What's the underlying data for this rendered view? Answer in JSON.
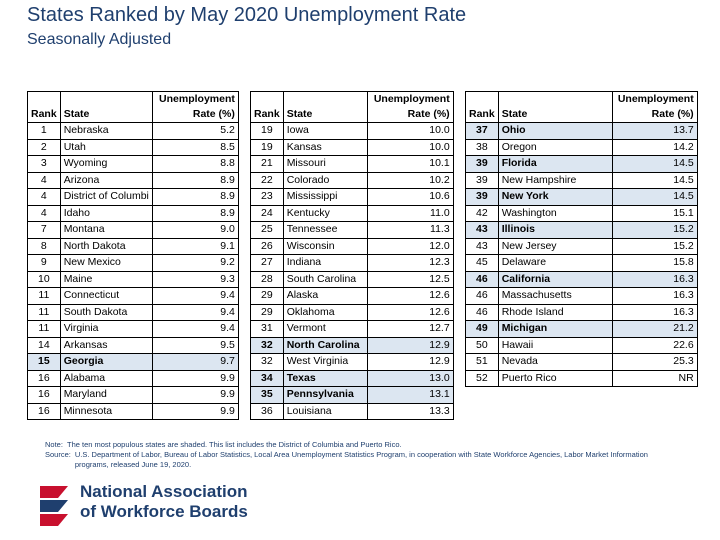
{
  "title": "States Ranked by May 2020 Unemployment Rate",
  "subtitle": "Seasonally Adjusted",
  "headers": {
    "rank": "Rank",
    "state": "State",
    "rate_line1": "Unemployment",
    "rate_line2": "Rate (%)"
  },
  "tables": [
    {
      "rows": [
        {
          "rank": "1",
          "state": "Nebraska",
          "rate": "5.2",
          "shaded": false
        },
        {
          "rank": "2",
          "state": "Utah",
          "rate": "8.5",
          "shaded": false
        },
        {
          "rank": "3",
          "state": "Wyoming",
          "rate": "8.8",
          "shaded": false
        },
        {
          "rank": "4",
          "state": "Arizona",
          "rate": "8.9",
          "shaded": false
        },
        {
          "rank": "4",
          "state": "District of Columbi",
          "rate": "8.9",
          "shaded": false
        },
        {
          "rank": "4",
          "state": "Idaho",
          "rate": "8.9",
          "shaded": false
        },
        {
          "rank": "7",
          "state": "Montana",
          "rate": "9.0",
          "shaded": false
        },
        {
          "rank": "8",
          "state": "North Dakota",
          "rate": "9.1",
          "shaded": false
        },
        {
          "rank": "9",
          "state": "New Mexico",
          "rate": "9.2",
          "shaded": false
        },
        {
          "rank": "10",
          "state": "Maine",
          "rate": "9.3",
          "shaded": false
        },
        {
          "rank": "11",
          "state": "Connecticut",
          "rate": "9.4",
          "shaded": false
        },
        {
          "rank": "11",
          "state": "South Dakota",
          "rate": "9.4",
          "shaded": false
        },
        {
          "rank": "11",
          "state": "Virginia",
          "rate": "9.4",
          "shaded": false
        },
        {
          "rank": "14",
          "state": "Arkansas",
          "rate": "9.5",
          "shaded": false
        },
        {
          "rank": "15",
          "state": "Georgia",
          "rate": "9.7",
          "shaded": true
        },
        {
          "rank": "16",
          "state": "Alabama",
          "rate": "9.9",
          "shaded": false
        },
        {
          "rank": "16",
          "state": "Maryland",
          "rate": "9.9",
          "shaded": false
        },
        {
          "rank": "16",
          "state": "Minnesota",
          "rate": "9.9",
          "shaded": false
        }
      ]
    },
    {
      "rows": [
        {
          "rank": "19",
          "state": "Iowa",
          "rate": "10.0",
          "shaded": false
        },
        {
          "rank": "19",
          "state": "Kansas",
          "rate": "10.0",
          "shaded": false
        },
        {
          "rank": "21",
          "state": "Missouri",
          "rate": "10.1",
          "shaded": false
        },
        {
          "rank": "22",
          "state": "Colorado",
          "rate": "10.2",
          "shaded": false
        },
        {
          "rank": "23",
          "state": "Mississippi",
          "rate": "10.6",
          "shaded": false
        },
        {
          "rank": "24",
          "state": "Kentucky",
          "rate": "11.0",
          "shaded": false
        },
        {
          "rank": "25",
          "state": "Tennessee",
          "rate": "11.3",
          "shaded": false
        },
        {
          "rank": "26",
          "state": "Wisconsin",
          "rate": "12.0",
          "shaded": false
        },
        {
          "rank": "27",
          "state": "Indiana",
          "rate": "12.3",
          "shaded": false
        },
        {
          "rank": "28",
          "state": "South Carolina",
          "rate": "12.5",
          "shaded": false
        },
        {
          "rank": "29",
          "state": "Alaska",
          "rate": "12.6",
          "shaded": false
        },
        {
          "rank": "29",
          "state": "Oklahoma",
          "rate": "12.6",
          "shaded": false
        },
        {
          "rank": "31",
          "state": "Vermont",
          "rate": "12.7",
          "shaded": false
        },
        {
          "rank": "32",
          "state": "North Carolina",
          "rate": "12.9",
          "shaded": true
        },
        {
          "rank": "32",
          "state": "West Virginia",
          "rate": "12.9",
          "shaded": false
        },
        {
          "rank": "34",
          "state": "Texas",
          "rate": "13.0",
          "shaded": true
        },
        {
          "rank": "35",
          "state": "Pennsylvania",
          "rate": "13.1",
          "shaded": true
        },
        {
          "rank": "36",
          "state": "Louisiana",
          "rate": "13.3",
          "shaded": false
        }
      ]
    },
    {
      "rows": [
        {
          "rank": "37",
          "state": "Ohio",
          "rate": "13.7",
          "shaded": true
        },
        {
          "rank": "38",
          "state": "Oregon",
          "rate": "14.2",
          "shaded": false
        },
        {
          "rank": "39",
          "state": "Florida",
          "rate": "14.5",
          "shaded": true
        },
        {
          "rank": "39",
          "state": "New Hampshire",
          "rate": "14.5",
          "shaded": false
        },
        {
          "rank": "39",
          "state": "New York",
          "rate": "14.5",
          "shaded": true
        },
        {
          "rank": "42",
          "state": "Washington",
          "rate": "15.1",
          "shaded": false
        },
        {
          "rank": "43",
          "state": "Illinois",
          "rate": "15.2",
          "shaded": true
        },
        {
          "rank": "43",
          "state": "New Jersey",
          "rate": "15.2",
          "shaded": false
        },
        {
          "rank": "45",
          "state": "Delaware",
          "rate": "15.8",
          "shaded": false
        },
        {
          "rank": "46",
          "state": "California",
          "rate": "16.3",
          "shaded": true
        },
        {
          "rank": "46",
          "state": "Massachusetts",
          "rate": "16.3",
          "shaded": false
        },
        {
          "rank": "46",
          "state": "Rhode Island",
          "rate": "16.3",
          "shaded": false
        },
        {
          "rank": "49",
          "state": "Michigan",
          "rate": "21.2",
          "shaded": true
        },
        {
          "rank": "50",
          "state": "Hawaii",
          "rate": "22.6",
          "shaded": false
        },
        {
          "rank": "51",
          "state": "Nevada",
          "rate": "25.3",
          "shaded": false
        },
        {
          "rank": "52",
          "state": "Puerto Rico",
          "rate": "NR",
          "shaded": false
        }
      ]
    }
  ],
  "note_label": "Note:",
  "note_text": "The ten most populous states are shaded.  This list includes the District of Columbia and Puerto Rico.",
  "source_label": "Source:",
  "source_text": "U.S. Department of Labor, Bureau of Labor Statistics, Local Area Unemployment Statistics Program, in cooperation with State Workforce Agencies, Labor Market Information programs, released June 19, 2020.",
  "logo": {
    "line1": "National Association",
    "line2": "of Workforce Boards",
    "colors": {
      "blue": "#1f3f6e",
      "red": "#c8102e"
    }
  }
}
